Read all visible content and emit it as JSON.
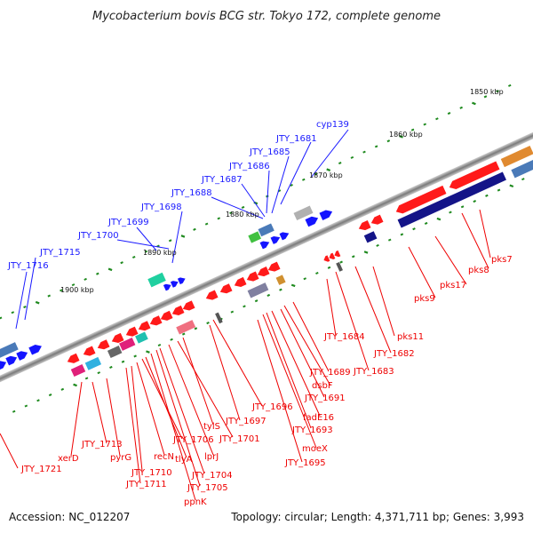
{
  "title": "Mycobacterium bovis BCG str. Tokyo 172, complete genome",
  "footer": {
    "accession": "Accession: NC_012207",
    "summary": "Topology: circular; Length: 4,371,711 bp; Genes: 3,993"
  },
  "ticks": [
    "1850 kbp",
    "1860 kbp",
    "1870 kbp",
    "1880 kbp",
    "1890 kbp",
    "1900 kbp"
  ],
  "top_labels": [
    "cyp139",
    "JTY_1681",
    "JTY_1685",
    "JTY_1686",
    "JTY_1687",
    "JTY_1688",
    "JTY_1698",
    "JTY_1699",
    "JTY_1700",
    "JTY_1715",
    "JTY_1716"
  ],
  "bottom_labels": [
    "pks7",
    "pks8",
    "pks17",
    "pks9",
    "pks11",
    "JTY_1682",
    "JTY_1683",
    "JTY_1684",
    "JTY_1689",
    "dsbF",
    "JTY_1691",
    "fadE16",
    "JTY_1693",
    "moeX",
    "JTY_1695",
    "JTY_1696",
    "JTY_1697",
    "tylS",
    "JTY_1701",
    "lprJ",
    "JTY_1704",
    "JTY_1705",
    "ppnK",
    "tlyA",
    "JTY_1706",
    "recN",
    "JTY_1710",
    "JTY_1711",
    "pyrG",
    "JTY_1713",
    "xerD",
    "JTY_1721"
  ],
  "colors": {
    "backbone": "#8a8a8a",
    "forward_gene": "#1414ff",
    "reverse_gene": "#ff1a1a",
    "pks_block": "#141488",
    "tick": "#1f8a1f",
    "label_top": "#1a1aff",
    "label_bottom": "#ee0000"
  }
}
